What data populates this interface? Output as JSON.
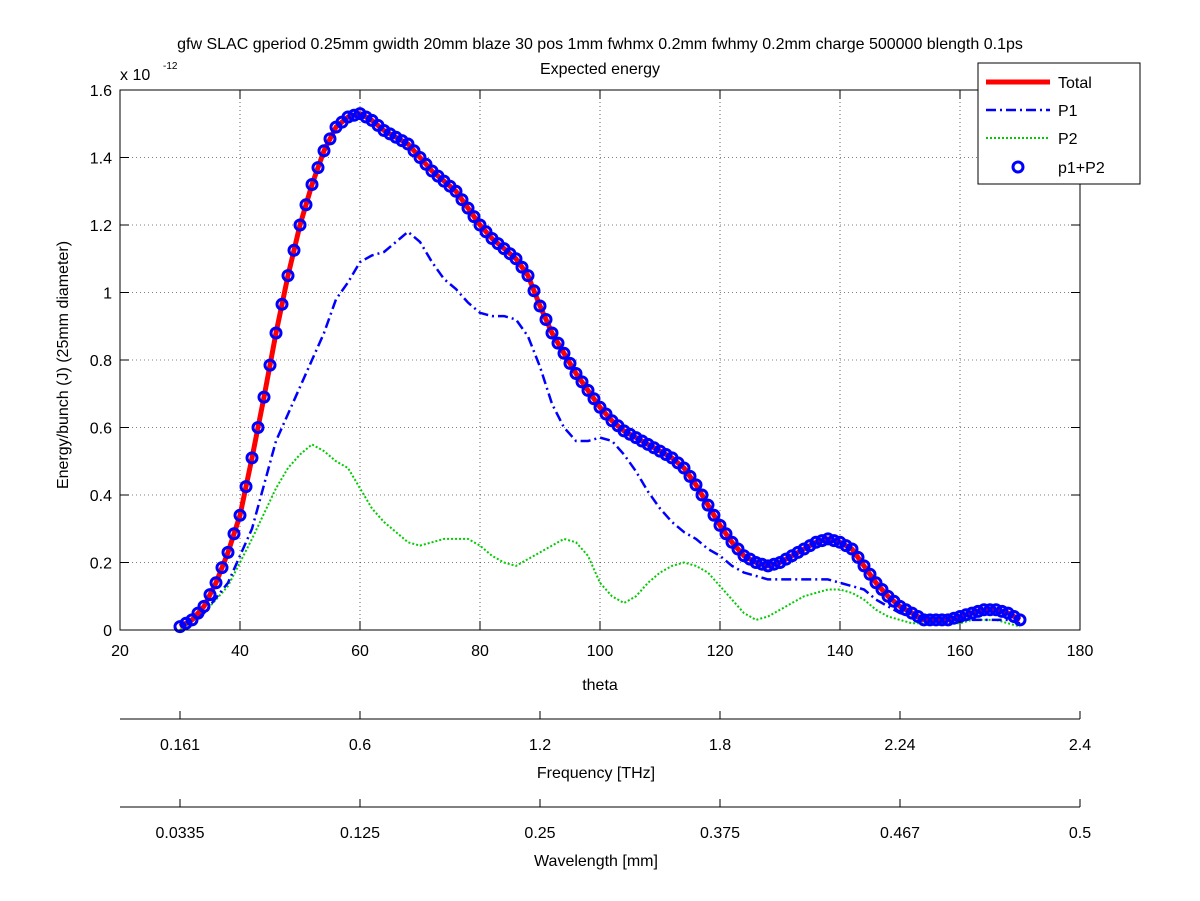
{
  "chart_data": {
    "type": "line",
    "title": "gfw SLAC gperiod 0.25mm gwidth 20mm blaze 30 pos 1mm fwhmx 0.2mm fwhmy 0.2mm charge 500000 blength 0.1ps",
    "subtitle": "Expected energy",
    "xlabel": "theta",
    "ylabel": "Energy/bunch (J) (25mm diameter)",
    "y_exponent_label": "x 10",
    "y_exponent_sup": "-12",
    "xlim": [
      20,
      180
    ],
    "ylim": [
      0,
      1.6
    ],
    "grid": true,
    "legend_position": "top-right",
    "x_ticks": [
      "20",
      "40",
      "60",
      "80",
      "100",
      "120",
      "140",
      "160",
      "180"
    ],
    "y_ticks": [
      "0",
      "0.2",
      "0.4",
      "0.6",
      "0.8",
      "1",
      "1.2",
      "1.4",
      "1.6"
    ],
    "series": [
      {
        "name": "Total",
        "color": "#ff0000",
        "style": "solid",
        "x": [
          30,
          32,
          34,
          36,
          38,
          40,
          42,
          44,
          46,
          48,
          50,
          52,
          54,
          56,
          58,
          60,
          62,
          64,
          66,
          68,
          70,
          72,
          74,
          76,
          78,
          80,
          82,
          84,
          86,
          88,
          90,
          92,
          94,
          96,
          98,
          100,
          102,
          104,
          106,
          108,
          110,
          112,
          114,
          116,
          118,
          120,
          122,
          124,
          126,
          128,
          130,
          132,
          134,
          136,
          138,
          140,
          142,
          144,
          146,
          148,
          150,
          152,
          154,
          156,
          158,
          160,
          162,
          164,
          166,
          168,
          170
        ],
        "y": [
          0.01,
          0.03,
          0.07,
          0.14,
          0.23,
          0.34,
          0.51,
          0.69,
          0.88,
          1.05,
          1.2,
          1.32,
          1.42,
          1.49,
          1.52,
          1.53,
          1.51,
          1.48,
          1.46,
          1.44,
          1.4,
          1.36,
          1.33,
          1.3,
          1.25,
          1.2,
          1.16,
          1.13,
          1.1,
          1.05,
          0.96,
          0.88,
          0.82,
          0.76,
          0.71,
          0.66,
          0.62,
          0.59,
          0.57,
          0.55,
          0.53,
          0.51,
          0.48,
          0.43,
          0.37,
          0.31,
          0.26,
          0.22,
          0.2,
          0.19,
          0.2,
          0.22,
          0.24,
          0.26,
          0.27,
          0.26,
          0.24,
          0.19,
          0.14,
          0.1,
          0.07,
          0.05,
          0.03,
          0.03,
          0.03,
          0.04,
          0.05,
          0.06,
          0.06,
          0.05,
          0.03
        ]
      },
      {
        "name": "P1",
        "color": "#0000ff",
        "style": "dashdot",
        "x": [
          30,
          34,
          38,
          42,
          46,
          50,
          54,
          56,
          58,
          60,
          62,
          64,
          66,
          68,
          70,
          72,
          74,
          76,
          78,
          80,
          82,
          84,
          86,
          88,
          90,
          92,
          94,
          96,
          98,
          100,
          102,
          104,
          106,
          108,
          110,
          112,
          114,
          116,
          118,
          120,
          122,
          124,
          126,
          128,
          130,
          132,
          134,
          136,
          138,
          140,
          142,
          144,
          146,
          148,
          150,
          152,
          154,
          156,
          158,
          160,
          162,
          164,
          166,
          168,
          170
        ],
        "y": [
          0.01,
          0.05,
          0.14,
          0.3,
          0.56,
          0.72,
          0.88,
          0.98,
          1.03,
          1.09,
          1.11,
          1.12,
          1.15,
          1.18,
          1.15,
          1.09,
          1.04,
          1.01,
          0.97,
          0.94,
          0.93,
          0.93,
          0.92,
          0.87,
          0.78,
          0.67,
          0.6,
          0.56,
          0.56,
          0.57,
          0.56,
          0.52,
          0.47,
          0.41,
          0.36,
          0.32,
          0.29,
          0.27,
          0.24,
          0.22,
          0.19,
          0.17,
          0.16,
          0.15,
          0.15,
          0.15,
          0.15,
          0.15,
          0.15,
          0.14,
          0.13,
          0.12,
          0.09,
          0.07,
          0.05,
          0.04,
          0.03,
          0.03,
          0.03,
          0.03,
          0.03,
          0.03,
          0.03,
          0.03,
          0.02
        ]
      },
      {
        "name": "P2",
        "color": "#00cc00",
        "style": "dotted",
        "x": [
          30,
          34,
          38,
          42,
          46,
          48,
          50,
          52,
          54,
          56,
          58,
          60,
          62,
          64,
          66,
          68,
          70,
          72,
          74,
          76,
          78,
          80,
          82,
          84,
          86,
          88,
          90,
          92,
          94,
          96,
          98,
          100,
          102,
          104,
          106,
          108,
          110,
          112,
          114,
          116,
          118,
          120,
          122,
          124,
          126,
          128,
          130,
          132,
          134,
          136,
          138,
          140,
          142,
          144,
          146,
          148,
          150,
          152,
          154,
          156,
          158,
          160,
          162,
          164,
          166,
          168,
          170
        ],
        "y": [
          0.0,
          0.05,
          0.13,
          0.27,
          0.42,
          0.48,
          0.52,
          0.55,
          0.53,
          0.5,
          0.48,
          0.42,
          0.36,
          0.32,
          0.29,
          0.26,
          0.25,
          0.26,
          0.27,
          0.27,
          0.27,
          0.25,
          0.22,
          0.2,
          0.19,
          0.21,
          0.23,
          0.25,
          0.27,
          0.26,
          0.22,
          0.14,
          0.1,
          0.08,
          0.1,
          0.14,
          0.17,
          0.19,
          0.2,
          0.19,
          0.17,
          0.13,
          0.09,
          0.05,
          0.03,
          0.04,
          0.06,
          0.08,
          0.1,
          0.11,
          0.12,
          0.12,
          0.11,
          0.09,
          0.06,
          0.04,
          0.03,
          0.02,
          0.02,
          0.02,
          0.02,
          0.02,
          0.03,
          0.03,
          0.03,
          0.02,
          0.01
        ]
      },
      {
        "name": "p1+P2",
        "color": "#0000ff",
        "style": "markers",
        "marker": "circle"
      }
    ],
    "secondary_axes": [
      {
        "label": "Frequency [THz]",
        "tick_labels": [
          "0.161",
          "0.6",
          "1.2",
          "1.8",
          "2.24",
          "2.4"
        ],
        "tick_theta": [
          30,
          60,
          90,
          120,
          150,
          180
        ]
      },
      {
        "label": "Wavelength [mm]",
        "tick_labels": [
          "0.0335",
          "0.125",
          "0.25",
          "0.375",
          "0.467",
          "0.5"
        ],
        "tick_theta": [
          30,
          60,
          90,
          120,
          150,
          180
        ]
      }
    ]
  }
}
